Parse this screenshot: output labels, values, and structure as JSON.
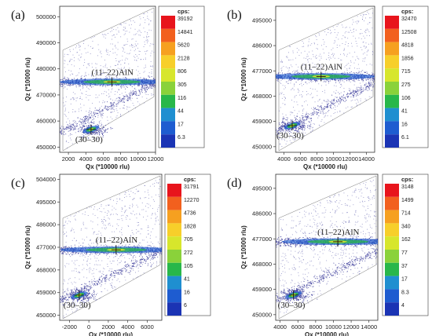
{
  "chart_data": [
    {
      "type": "heatmap",
      "panel_label": "(a)",
      "xlabel": "Qx (*10000 rlu)",
      "ylabel": "Qz (*10000 rlu)",
      "xticks": [
        "2000",
        "4000",
        "6000",
        "8000",
        "10000",
        "12000"
      ],
      "yticks": [
        "500000",
        "490000",
        "480000",
        "470000",
        "460000",
        "450000"
      ],
      "peaks": [
        {
          "label": "(11–22)AlN",
          "x": 7000,
          "y": 475000
        },
        {
          "label": "(30–30)",
          "x": 4600,
          "y": 456800
        }
      ],
      "legend": {
        "title": "cps:",
        "values": [
          "39192",
          "14841",
          "5620",
          "2128",
          "806",
          "305",
          "116",
          "44",
          "17",
          "6.3"
        ]
      }
    },
    {
      "type": "heatmap",
      "panel_label": "(b)",
      "xlabel": "Qx (*10000 rlu)",
      "ylabel": "Qz (*10000 rlu)",
      "xticks": [
        "4000",
        "6000",
        "8000",
        "10000",
        "12000",
        "14000"
      ],
      "yticks": [
        "495000",
        "486000",
        "477000",
        "468000",
        "459000",
        "450000"
      ],
      "peaks": [
        {
          "label": "(11–22)AlN",
          "x": 8500,
          "y": 475000
        },
        {
          "label": "(30–30)",
          "x": 5000,
          "y": 457500
        }
      ],
      "legend": {
        "title": "cps:",
        "values": [
          "32470",
          "12508",
          "4818",
          "1856",
          "715",
          "275",
          "106",
          "41",
          "16",
          "6.1"
        ]
      }
    },
    {
      "type": "heatmap",
      "panel_label": "(c)",
      "xlabel": "Qx (*10000 rlu)",
      "ylabel": "Qz (*10000 rlu)",
      "xticks": [
        "-2000",
        "0",
        "2000",
        "4000",
        "6000"
      ],
      "yticks": [
        "504000",
        "495000",
        "486000",
        "477000",
        "468000",
        "459000",
        "450000"
      ],
      "peaks": [
        {
          "label": "(11–22)AlN",
          "x": 2800,
          "y": 476000
        },
        {
          "label": "(30–30)",
          "x": -1000,
          "y": 458000
        }
      ],
      "legend": {
        "title": "cps:",
        "values": [
          "31791",
          "12270",
          "4736",
          "1828",
          "705",
          "272",
          "105",
          "41",
          "16",
          "6"
        ]
      }
    },
    {
      "type": "heatmap",
      "panel_label": "(d)",
      "xlabel": "Qx (*10000 rlu)",
      "ylabel": "Qz (*10000 rlu)",
      "xticks": [
        "4000",
        "6000",
        "8000",
        "10000",
        "12000",
        "14000"
      ],
      "yticks": [
        "495000",
        "486000",
        "477000",
        "468000",
        "459000",
        "450000"
      ],
      "peaks": [
        {
          "label": "(11–22)AlN",
          "x": 10500,
          "y": 476000
        },
        {
          "label": "(30–30)",
          "x": 5500,
          "y": 457000
        }
      ],
      "legend": {
        "title": "cps:",
        "values": [
          "3148",
          "1499",
          "714",
          "340",
          "162",
          "77",
          "37",
          "17",
          "8.3",
          "4"
        ]
      }
    }
  ],
  "colors": {
    "scale": [
      "#e8141c",
      "#f2601e",
      "#f6a020",
      "#f7cf2a",
      "#d7e62c",
      "#8ad23a",
      "#28b74a",
      "#1f8fd0",
      "#1e5cd0",
      "#1b34b4"
    ],
    "scatter": "#3a3a9a",
    "peak_core": "#d7e62c",
    "peak_mid": "#28b74a",
    "peak_outer": "#1e5cd0"
  }
}
